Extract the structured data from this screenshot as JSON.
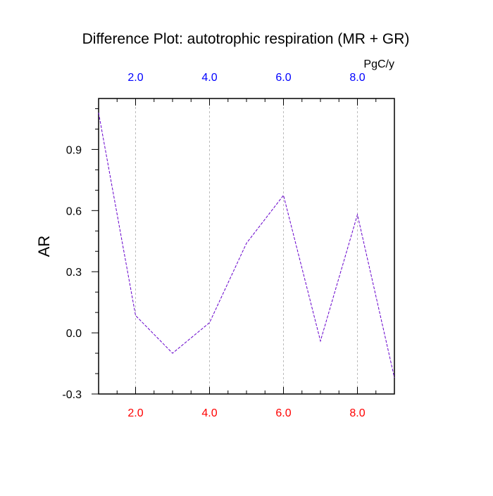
{
  "chart_data": {
    "type": "line",
    "title": "Difference Plot: autotrophic respiration (MR + GR)",
    "ylabel": "AR",
    "units": "PgC/y",
    "x": [
      1,
      2,
      3,
      4,
      5,
      6,
      7,
      8,
      9
    ],
    "xlim": [
      1,
      9
    ],
    "ylim": [
      -0.3,
      1.15
    ],
    "x_ticks_bottom": [
      {
        "value": 2,
        "label": "2.0"
      },
      {
        "value": 4,
        "label": "4.0"
      },
      {
        "value": 6,
        "label": "6.0"
      },
      {
        "value": 8,
        "label": "8.0"
      }
    ],
    "x_ticks_top": [
      {
        "value": 2,
        "label": "2.0"
      },
      {
        "value": 4,
        "label": "4.0"
      },
      {
        "value": 6,
        "label": "6.0"
      },
      {
        "value": 8,
        "label": "8.0"
      }
    ],
    "y_ticks": [
      {
        "value": -0.3,
        "label": "-0.3"
      },
      {
        "value": 0.0,
        "label": "0.0"
      },
      {
        "value": 0.3,
        "label": "0.3"
      },
      {
        "value": 0.6,
        "label": "0.6"
      },
      {
        "value": 0.9,
        "label": "0.9"
      }
    ],
    "grid": "vertical dashed at major x ticks",
    "series": [
      {
        "values": [
          1.08,
          0.085,
          -0.1,
          0.05,
          0.44,
          0.675,
          -0.04,
          0.58,
          -0.22
        ],
        "color": "#6600cc",
        "style": "dashed"
      }
    ],
    "colors": {
      "bottom_axis_labels": "#ff0000",
      "top_axis_labels": "#0000ff",
      "left_axis_labels": "#000000",
      "frame": "#000000",
      "grid": "#bbbbbb"
    }
  }
}
